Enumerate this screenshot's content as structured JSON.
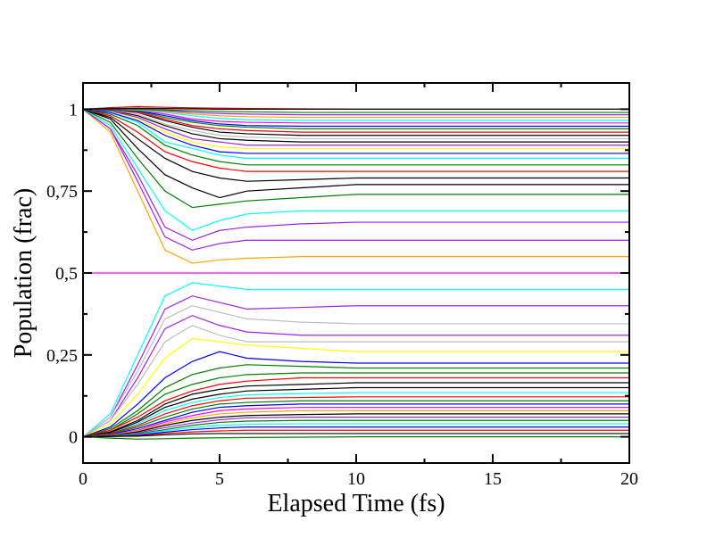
{
  "chart_data": {
    "type": "line",
    "title": "",
    "xlabel": "Elapsed Time (fs)",
    "ylabel": "Population (frac)",
    "xlim": [
      0,
      20
    ],
    "ylim": [
      -0.08,
      1.08
    ],
    "x_ticks": [
      0,
      5,
      10,
      15,
      20
    ],
    "x_tick_labels": [
      "0",
      "5",
      "10",
      "15",
      "20"
    ],
    "y_ticks": [
      0,
      0.25,
      0.5,
      0.75,
      1
    ],
    "y_tick_labels": [
      "0",
      "0,25",
      "0,5",
      "0,75",
      "1"
    ],
    "grid": false,
    "legend": "none",
    "x": [
      0,
      1,
      2,
      3,
      4,
      5,
      6,
      8,
      10,
      12,
      15,
      20
    ],
    "series": [
      {
        "color": "#ff00ff",
        "values": [
          0.5,
          0.5,
          0.5,
          0.5,
          0.5,
          0.5,
          0.5,
          0.5,
          0.5,
          0.5,
          0.5,
          0.5
        ]
      },
      {
        "color": "#ffa500",
        "values": [
          1,
          0.93,
          0.75,
          0.57,
          0.53,
          0.54,
          0.545,
          0.55,
          0.55,
          0.55,
          0.55,
          0.55
        ]
      },
      {
        "color": "#a020f0",
        "values": [
          1,
          0.94,
          0.78,
          0.61,
          0.57,
          0.59,
          0.6,
          0.6,
          0.6,
          0.6,
          0.6,
          0.6
        ]
      },
      {
        "color": "#a020f0",
        "values": [
          1,
          0.94,
          0.8,
          0.64,
          0.6,
          0.63,
          0.64,
          0.65,
          0.655,
          0.655,
          0.655,
          0.655
        ]
      },
      {
        "color": "#00ffff",
        "values": [
          1,
          0.95,
          0.82,
          0.69,
          0.63,
          0.66,
          0.68,
          0.69,
          0.69,
          0.69,
          0.69,
          0.69
        ]
      },
      {
        "color": "#008000",
        "values": [
          1,
          0.96,
          0.85,
          0.75,
          0.7,
          0.71,
          0.72,
          0.73,
          0.74,
          0.74,
          0.74,
          0.74
        ]
      },
      {
        "color": "#000000",
        "values": [
          1,
          0.97,
          0.88,
          0.8,
          0.76,
          0.73,
          0.75,
          0.76,
          0.77,
          0.77,
          0.77,
          0.77
        ]
      },
      {
        "color": "#000000",
        "values": [
          1,
          0.975,
          0.91,
          0.85,
          0.81,
          0.79,
          0.78,
          0.785,
          0.79,
          0.79,
          0.79,
          0.79
        ]
      },
      {
        "color": "#ff0000",
        "values": [
          1,
          0.98,
          0.93,
          0.87,
          0.84,
          0.82,
          0.81,
          0.81,
          0.81,
          0.81,
          0.81,
          0.81
        ]
      },
      {
        "color": "#008000",
        "values": [
          1,
          0.985,
          0.95,
          0.89,
          0.86,
          0.84,
          0.83,
          0.83,
          0.83,
          0.83,
          0.83,
          0.83
        ]
      },
      {
        "color": "#00ffff",
        "values": [
          1,
          0.99,
          0.96,
          0.9,
          0.88,
          0.86,
          0.85,
          0.85,
          0.85,
          0.85,
          0.85,
          0.85
        ]
      },
      {
        "color": "#0000ff",
        "values": [
          1,
          0.99,
          0.965,
          0.92,
          0.89,
          0.87,
          0.865,
          0.865,
          0.865,
          0.865,
          0.865,
          0.865
        ]
      },
      {
        "color": "#ffff00",
        "values": [
          1,
          0.995,
          0.97,
          0.93,
          0.9,
          0.885,
          0.88,
          0.88,
          0.88,
          0.88,
          0.88,
          0.88
        ]
      },
      {
        "color": "#a020f0",
        "values": [
          1,
          0.995,
          0.975,
          0.94,
          0.91,
          0.9,
          0.89,
          0.89,
          0.89,
          0.89,
          0.89,
          0.89
        ]
      },
      {
        "color": "#000000",
        "values": [
          1,
          0.997,
          0.98,
          0.95,
          0.925,
          0.91,
          0.905,
          0.9,
          0.9,
          0.9,
          0.9,
          0.9
        ]
      },
      {
        "color": "#bebebe",
        "values": [
          1,
          0.997,
          0.985,
          0.955,
          0.935,
          0.92,
          0.915,
          0.91,
          0.91,
          0.91,
          0.91,
          0.91
        ]
      },
      {
        "color": "#000000",
        "values": [
          1,
          0.998,
          0.99,
          0.965,
          0.945,
          0.93,
          0.925,
          0.92,
          0.92,
          0.92,
          0.92,
          0.92
        ]
      },
      {
        "color": "#ff0000",
        "values": [
          1,
          0.998,
          0.99,
          0.97,
          0.95,
          0.94,
          0.935,
          0.93,
          0.93,
          0.93,
          0.93,
          0.93
        ]
      },
      {
        "color": "#008000",
        "values": [
          1,
          0.999,
          0.993,
          0.975,
          0.96,
          0.95,
          0.945,
          0.94,
          0.94,
          0.94,
          0.94,
          0.94
        ]
      },
      {
        "color": "#0000ff",
        "values": [
          1,
          0.999,
          0.995,
          0.98,
          0.965,
          0.955,
          0.95,
          0.948,
          0.948,
          0.948,
          0.948,
          0.948
        ]
      },
      {
        "color": "#ff00ff",
        "values": [
          1,
          1,
          0.997,
          0.985,
          0.97,
          0.963,
          0.96,
          0.958,
          0.958,
          0.958,
          0.958,
          0.958
        ]
      },
      {
        "color": "#00ffff",
        "values": [
          1,
          1,
          0.998,
          0.99,
          0.98,
          0.972,
          0.968,
          0.966,
          0.966,
          0.966,
          0.966,
          0.966
        ]
      },
      {
        "color": "#ffa500",
        "values": [
          1,
          1,
          0.999,
          0.993,
          0.985,
          0.98,
          0.977,
          0.975,
          0.975,
          0.975,
          0.975,
          0.975
        ]
      },
      {
        "color": "#a020f0",
        "values": [
          1,
          1,
          1,
          0.996,
          0.99,
          0.987,
          0.985,
          0.983,
          0.983,
          0.983,
          0.983,
          0.983
        ]
      },
      {
        "color": "#008000",
        "values": [
          1,
          1,
          1,
          0.998,
          0.995,
          0.993,
          0.992,
          0.99,
          0.99,
          0.99,
          0.99,
          0.99
        ]
      },
      {
        "color": "#ff0000",
        "values": [
          1,
          1.005,
          1.008,
          1.006,
          1.004,
          1.003,
          1.002,
          1.001,
          1.0,
          1.0,
          1.0,
          1.0
        ]
      },
      {
        "color": "#000000",
        "values": [
          1,
          1.002,
          1.003,
          1.002,
          1.001,
          1.0,
          1.0,
          1.0,
          1.0,
          1.0,
          1.0,
          1.0
        ]
      },
      {
        "color": "#00ffff",
        "values": [
          0,
          0.07,
          0.25,
          0.43,
          0.47,
          0.46,
          0.45,
          0.45,
          0.45,
          0.45,
          0.45,
          0.45
        ]
      },
      {
        "color": "#a020f0",
        "values": [
          0,
          0.06,
          0.22,
          0.39,
          0.43,
          0.41,
          0.39,
          0.395,
          0.4,
          0.4,
          0.4,
          0.4
        ]
      },
      {
        "color": "#bebebe",
        "values": [
          0,
          0.06,
          0.2,
          0.36,
          0.4,
          0.38,
          0.36,
          0.35,
          0.345,
          0.345,
          0.345,
          0.345
        ]
      },
      {
        "color": "#a020f0",
        "values": [
          0,
          0.05,
          0.18,
          0.33,
          0.37,
          0.34,
          0.32,
          0.31,
          0.31,
          0.31,
          0.31,
          0.31
        ]
      },
      {
        "color": "#bebebe",
        "values": [
          0,
          0.05,
          0.16,
          0.29,
          0.34,
          0.31,
          0.29,
          0.29,
          0.29,
          0.29,
          0.29,
          0.29
        ]
      },
      {
        "color": "#ffff00",
        "values": [
          0,
          0.04,
          0.13,
          0.24,
          0.3,
          0.29,
          0.28,
          0.27,
          0.26,
          0.26,
          0.26,
          0.26
        ]
      },
      {
        "color": "#0000ff",
        "values": [
          0,
          0.03,
          0.1,
          0.18,
          0.23,
          0.26,
          0.24,
          0.23,
          0.225,
          0.225,
          0.225,
          0.225
        ]
      },
      {
        "color": "#008000",
        "values": [
          0,
          0.025,
          0.08,
          0.15,
          0.19,
          0.21,
          0.22,
          0.215,
          0.21,
          0.21,
          0.21,
          0.21
        ]
      },
      {
        "color": "#008000",
        "values": [
          0,
          0.02,
          0.07,
          0.13,
          0.16,
          0.18,
          0.19,
          0.195,
          0.195,
          0.195,
          0.195,
          0.195
        ]
      },
      {
        "color": "#ff0000",
        "values": [
          0,
          0.02,
          0.06,
          0.11,
          0.14,
          0.16,
          0.17,
          0.18,
          0.18,
          0.18,
          0.18,
          0.18
        ]
      },
      {
        "color": "#000000",
        "values": [
          0,
          0.015,
          0.05,
          0.1,
          0.13,
          0.145,
          0.155,
          0.16,
          0.165,
          0.165,
          0.165,
          0.165
        ]
      },
      {
        "color": "#000000",
        "values": [
          0,
          0.012,
          0.045,
          0.09,
          0.115,
          0.13,
          0.14,
          0.145,
          0.15,
          0.15,
          0.15,
          0.15
        ]
      },
      {
        "color": "#00ffff",
        "values": [
          0,
          0.01,
          0.04,
          0.08,
          0.105,
          0.12,
          0.128,
          0.132,
          0.135,
          0.135,
          0.135,
          0.135
        ]
      },
      {
        "color": "#ff0000",
        "values": [
          0,
          0.01,
          0.035,
          0.07,
          0.095,
          0.11,
          0.118,
          0.12,
          0.122,
          0.122,
          0.122,
          0.122
        ]
      },
      {
        "color": "#008000",
        "values": [
          0,
          0.008,
          0.03,
          0.06,
          0.085,
          0.1,
          0.105,
          0.11,
          0.11,
          0.11,
          0.11,
          0.11
        ]
      },
      {
        "color": "#0000ff",
        "values": [
          0,
          0.007,
          0.025,
          0.05,
          0.075,
          0.09,
          0.095,
          0.1,
          0.1,
          0.1,
          0.1,
          0.1
        ]
      },
      {
        "color": "#ff00ff",
        "values": [
          0,
          0.006,
          0.02,
          0.045,
          0.065,
          0.08,
          0.085,
          0.09,
          0.09,
          0.09,
          0.09,
          0.09
        ]
      },
      {
        "color": "#ffa500",
        "values": [
          0,
          0.005,
          0.018,
          0.04,
          0.058,
          0.07,
          0.075,
          0.08,
          0.08,
          0.08,
          0.08,
          0.08
        ]
      },
      {
        "color": "#000000",
        "values": [
          0,
          0.004,
          0.015,
          0.035,
          0.05,
          0.06,
          0.065,
          0.068,
          0.07,
          0.07,
          0.07,
          0.07
        ]
      },
      {
        "color": "#a020f0",
        "values": [
          0,
          0.003,
          0.012,
          0.028,
          0.042,
          0.052,
          0.058,
          0.06,
          0.06,
          0.06,
          0.06,
          0.06
        ]
      },
      {
        "color": "#008000",
        "values": [
          0,
          0.003,
          0.01,
          0.022,
          0.035,
          0.044,
          0.048,
          0.05,
          0.05,
          0.05,
          0.05,
          0.05
        ]
      },
      {
        "color": "#00ffff",
        "values": [
          0,
          0.002,
          0.008,
          0.018,
          0.028,
          0.035,
          0.038,
          0.04,
          0.04,
          0.04,
          0.04,
          0.04
        ]
      },
      {
        "color": "#0000ff",
        "values": [
          0,
          0.002,
          0.006,
          0.014,
          0.022,
          0.027,
          0.03,
          0.03,
          0.03,
          0.03,
          0.03,
          0.03
        ]
      },
      {
        "color": "#ff0000",
        "values": [
          0,
          0.001,
          0.004,
          0.01,
          0.015,
          0.018,
          0.02,
          0.02,
          0.02,
          0.02,
          0.02,
          0.02
        ]
      },
      {
        "color": "#000000",
        "values": [
          0,
          0.001,
          0.002,
          0.006,
          0.009,
          0.01,
          0.01,
          0.01,
          0.01,
          0.01,
          0.01,
          0.01
        ]
      },
      {
        "color": "#008000",
        "values": [
          0,
          -0.004,
          -0.007,
          -0.006,
          -0.004,
          -0.003,
          -0.002,
          -0.001,
          0,
          0,
          0,
          0
        ]
      }
    ]
  }
}
